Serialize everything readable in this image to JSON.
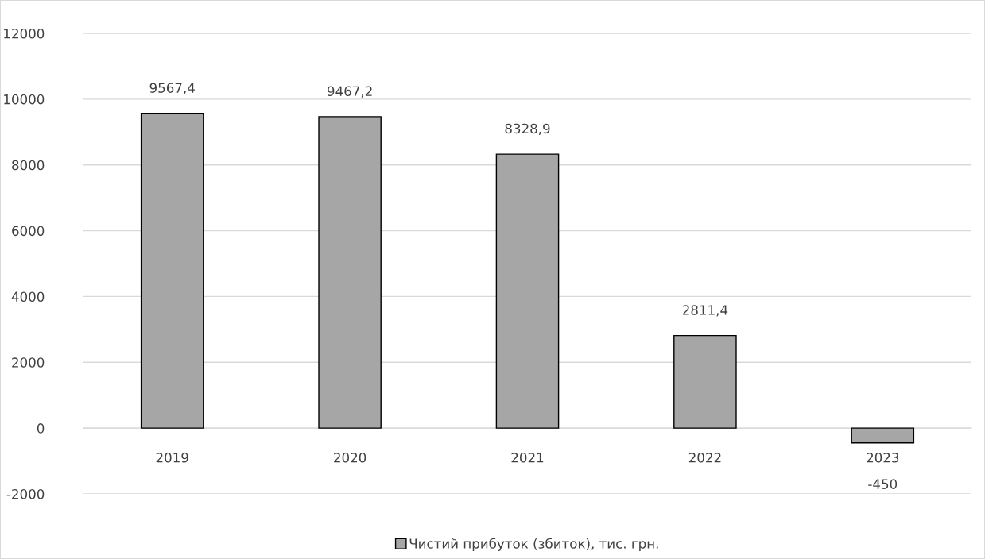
{
  "chart_data": {
    "type": "bar",
    "categories": [
      "2019",
      "2020",
      "2021",
      "2022",
      "2023"
    ],
    "series": [
      {
        "name": "Чистий прибуток (збиток), тис. грн.",
        "color": "#a6a6a6",
        "values": [
          9567.4,
          9467.2,
          8328.9,
          2811.4,
          -450
        ],
        "value_labels": [
          "9567,4",
          "9467,2",
          "8328,9",
          "2811,4",
          "-450"
        ]
      }
    ],
    "ylim": [
      -2000,
      12000
    ],
    "yticks": [
      -2000,
      0,
      2000,
      4000,
      6000,
      8000,
      10000,
      12000
    ],
    "grid": "y",
    "legend": "bottom"
  }
}
